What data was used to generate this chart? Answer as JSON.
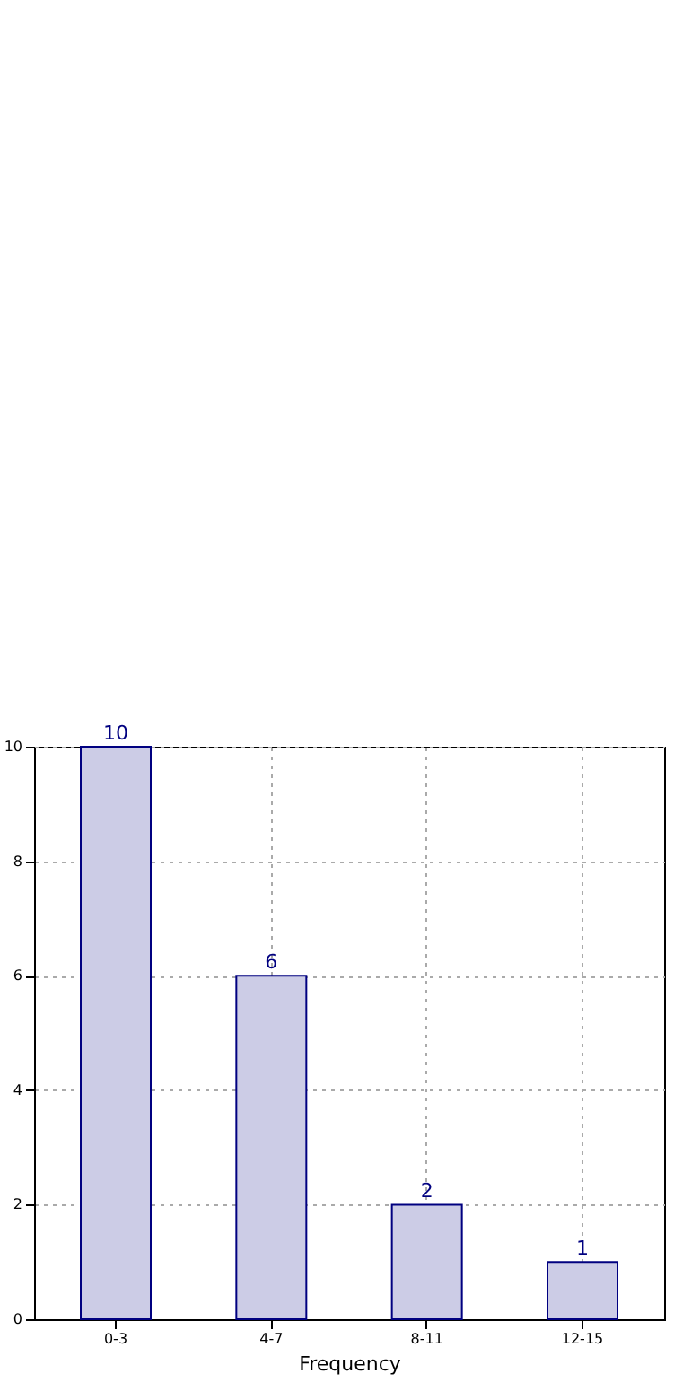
{
  "chart_data": {
    "type": "bar",
    "xlabel": "Frequency",
    "categories": [
      "0-3",
      "4-7",
      "8-11",
      "12-15"
    ],
    "series": [
      {
        "color": "#cccce6",
        "values": [
          10,
          6,
          2,
          1
        ]
      }
    ],
    "ylim": [
      0,
      10
    ],
    "yticks": [
      0,
      2,
      4,
      6,
      8,
      10
    ],
    "grid": true,
    "data_labels": true
  }
}
